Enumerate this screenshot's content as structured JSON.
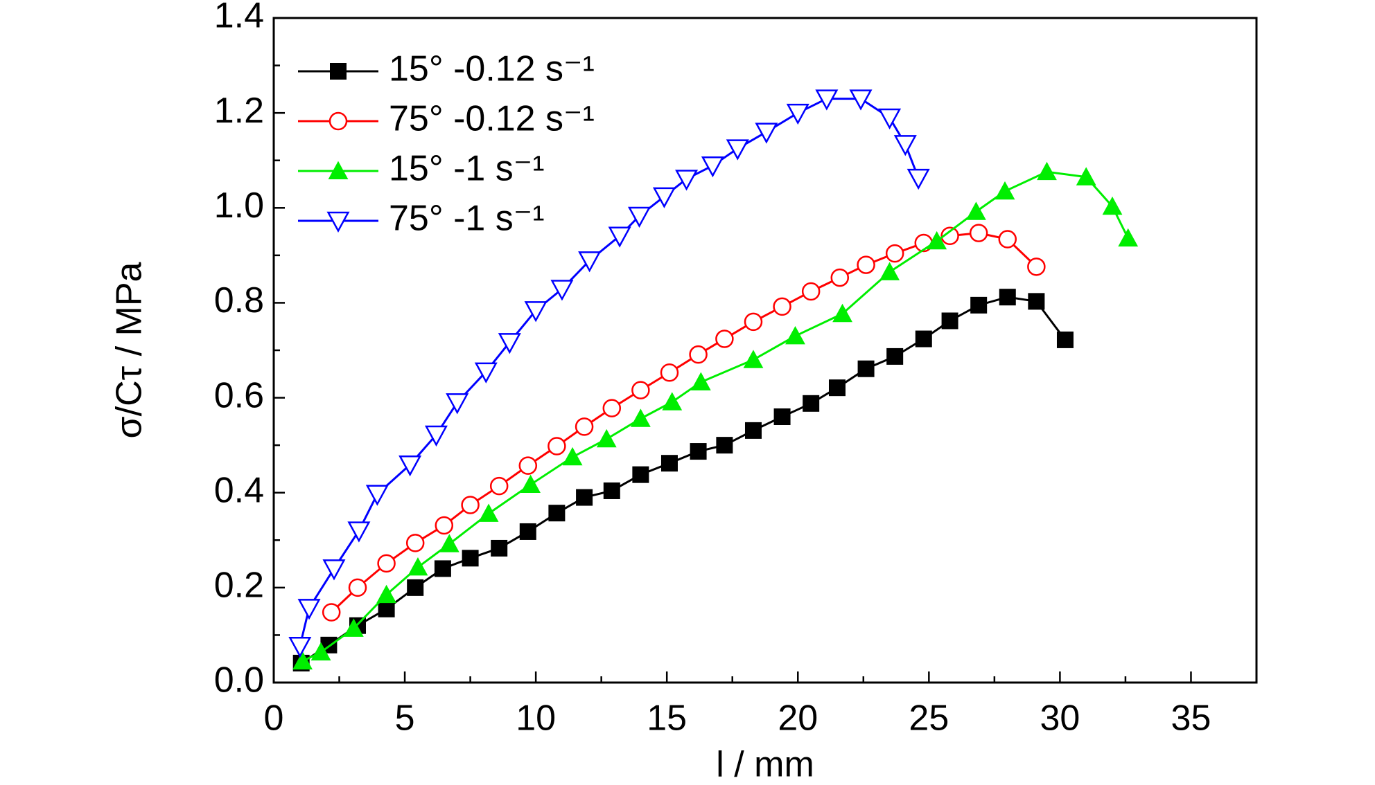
{
  "chart_data": {
    "type": "line",
    "xlabel": "l / mm",
    "ylabel": "σ/Cτ / MPa",
    "xlim": [
      0,
      37.5
    ],
    "ylim": [
      0,
      1.4
    ],
    "xticks": [
      0,
      5,
      10,
      15,
      20,
      25,
      30,
      35
    ],
    "yticks": [
      {
        "value": 0,
        "label": "0.0"
      },
      0.2,
      0.4,
      0.6,
      0.8,
      {
        "value": 1,
        "label": "1.0"
      },
      1.2,
      1.4
    ],
    "legend": "upper left",
    "series": [
      {
        "name": "15° -0.12 s⁻¹",
        "color": "#000000",
        "marker": "square",
        "x": [
          1.05,
          2.1,
          3.2,
          4.3,
          5.4,
          6.45,
          7.5,
          8.6,
          9.7,
          10.8,
          11.85,
          12.9,
          14,
          15.1,
          16.2,
          17.2,
          18.3,
          19.4,
          20.5,
          21.5,
          22.6,
          23.7,
          24.8,
          25.8,
          26.9,
          28,
          29.1,
          30.2
        ],
        "values": [
          0.041,
          0.079,
          0.12,
          0.155,
          0.2,
          0.24,
          0.262,
          0.283,
          0.318,
          0.357,
          0.39,
          0.404,
          0.438,
          0.462,
          0.487,
          0.5,
          0.531,
          0.56,
          0.588,
          0.621,
          0.661,
          0.687,
          0.724,
          0.762,
          0.795,
          0.812,
          0.803,
          0.722
        ]
      },
      {
        "name": "75° -0.12 s⁻¹",
        "color": "#ff0000",
        "marker": "circle",
        "x": [
          2.2,
          3.2,
          4.3,
          5.4,
          6.5,
          7.5,
          8.6,
          9.7,
          10.8,
          11.85,
          12.9,
          14,
          15.1,
          16.2,
          17.2,
          18.3,
          19.4,
          20.5,
          21.6,
          22.6,
          23.7,
          24.8,
          25.8,
          26.9,
          28,
          29.1
        ],
        "values": [
          0.148,
          0.2,
          0.251,
          0.294,
          0.331,
          0.374,
          0.414,
          0.457,
          0.498,
          0.539,
          0.578,
          0.616,
          0.653,
          0.691,
          0.724,
          0.76,
          0.792,
          0.824,
          0.853,
          0.88,
          0.904,
          0.926,
          0.941,
          0.947,
          0.934,
          0.876
        ]
      },
      {
        "name": "15° -1 s⁻¹",
        "color": "#00ee00",
        "marker": "triangle-up",
        "x": [
          1.1,
          1.8,
          3.05,
          4.3,
          5.5,
          6.7,
          8.2,
          9.8,
          11.4,
          12.7,
          14,
          15.2,
          16.3,
          18.3,
          19.9,
          21.7,
          23.5,
          25.3,
          26.8,
          27.9,
          29.5,
          31,
          32,
          32.6
        ],
        "values": [
          0.045,
          0.064,
          0.114,
          0.185,
          0.243,
          0.292,
          0.356,
          0.417,
          0.475,
          0.513,
          0.556,
          0.591,
          0.633,
          0.68,
          0.73,
          0.777,
          0.865,
          0.93,
          0.992,
          1.035,
          1.076,
          1.065,
          1.003,
          0.936
        ]
      },
      {
        "name": "75° -1 s⁻¹",
        "color": "#0000ff",
        "marker": "triangle-down",
        "x": [
          1,
          1.35,
          2.3,
          3.25,
          3.95,
          5.2,
          6.2,
          7,
          8.1,
          9,
          10,
          11,
          12.05,
          13.2,
          13.95,
          14.9,
          15.75,
          16.75,
          17.7,
          18.8,
          20,
          21.1,
          22.4,
          23.5,
          24.1,
          24.6
        ],
        "values": [
          0.077,
          0.157,
          0.24,
          0.32,
          0.397,
          0.459,
          0.522,
          0.59,
          0.655,
          0.717,
          0.784,
          0.829,
          0.889,
          0.941,
          0.983,
          1.024,
          1.061,
          1.089,
          1.125,
          1.16,
          1.2,
          1.23,
          1.23,
          1.19,
          1.134,
          1.063
        ]
      }
    ]
  }
}
